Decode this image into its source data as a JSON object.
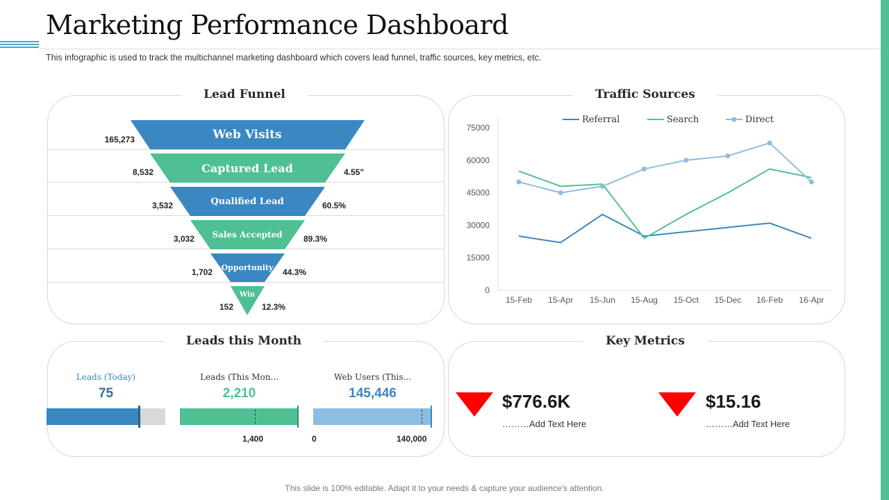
{
  "header": {
    "title": "Marketing Performance Dashboard",
    "subtitle": "This infographic is used to track the multichannel marketing dashboard which covers lead funnel, traffic sources, key metrics, etc."
  },
  "colors": {
    "blue": "#3a87c2",
    "green": "#4fc094",
    "light_blue": "#8dbde0",
    "grey": "#d9d9d9",
    "red": "#ff0000"
  },
  "lead_funnel": {
    "title": "Lead Funnel",
    "stages": [
      {
        "label": "Web Visits",
        "count": "165,273",
        "rate": ""
      },
      {
        "label": "Captured Lead",
        "count": "8,532",
        "rate": "4.55\""
      },
      {
        "label": "Qualified Lead",
        "count": "3,532",
        "rate": "60.5%"
      },
      {
        "label": "Sales Accepted",
        "count": "3,032",
        "rate": "89.3%"
      },
      {
        "label": "Opportunity",
        "count": "1,702",
        "rate": "44.3%"
      },
      {
        "label": "Win",
        "count": "152",
        "rate": "12.3%"
      }
    ]
  },
  "traffic_sources": {
    "title": "Traffic Sources",
    "chart_data": {
      "type": "line",
      "x": [
        "15-Feb",
        "15-Apr",
        "15-Jun",
        "15-Aug",
        "15-Oct",
        "15-Dec",
        "16-Feb",
        "16-Apr"
      ],
      "ylim": [
        0,
        75000
      ],
      "yticks": [
        "0",
        "15000",
        "30000",
        "45000",
        "60000",
        "75000"
      ],
      "legend_position": "top",
      "grid": false,
      "series": [
        {
          "name": "Referral",
          "color": "#3a87c2",
          "values": [
            25000,
            22000,
            35000,
            25000,
            27000,
            29000,
            31000,
            24000
          ]
        },
        {
          "name": "Search",
          "color": "#4fc094",
          "values": [
            55000,
            48000,
            49000,
            24000,
            35000,
            45000,
            56000,
            52000
          ]
        },
        {
          "name": "Direct",
          "color": "#8dbde0",
          "values": [
            50000,
            45000,
            48000,
            56000,
            60000,
            62000,
            68000,
            50000
          ]
        }
      ]
    }
  },
  "leads_month": {
    "title": "Leads this Month",
    "items": [
      {
        "label": "Leads (Today)",
        "value": "75",
        "color": "#3a87c2",
        "fill": 0.77,
        "marker": 0.77,
        "left_tick": "",
        "right_tick": ""
      },
      {
        "label": "Leads (This Mon...",
        "value": "2,210",
        "color": "#4fc094",
        "fill": 1.0,
        "marker": 0.63,
        "left_tick": "",
        "right_tick": "1,400"
      },
      {
        "label": "Web Users (This...",
        "value": "145,446",
        "color": "#3a87c2",
        "fill": 1.0,
        "marker": 0.91,
        "left_tick": "0",
        "right_tick": "140,000"
      }
    ]
  },
  "key_metrics": {
    "title": "Key Metrics",
    "items": [
      {
        "value": "$776.6K",
        "caption": "………Add Text Here",
        "icon": "down-triangle-icon"
      },
      {
        "value": "$15.16",
        "caption": "………Add Text Here",
        "icon": "down-triangle-icon"
      }
    ]
  },
  "footer": {
    "text": "This slide is 100% editable. Adapt it to your needs & capture your audience's attention."
  }
}
